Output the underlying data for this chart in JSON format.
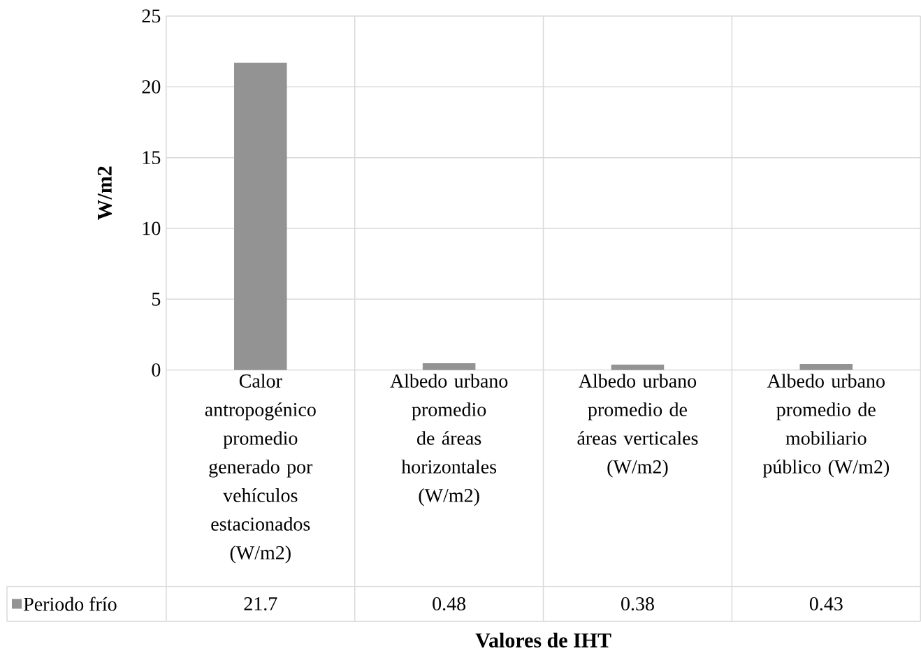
{
  "chart_data": {
    "type": "bar",
    "xlabel": "Valores de IHT",
    "ylabel": "W/m2",
    "categories": [
      "Calor antropogénico promedio generado por vehículos estacionados (W/m2)",
      "Albedo urbano promedio de áreas horizontales (W/m2)",
      "Albedo urbano promedio de áreas verticales (W/m2)",
      "Albedo urbano promedio de mobiliario público (W/m2)"
    ],
    "series": [
      {
        "name": "Periodo frío",
        "color": "#939393",
        "values": [
          21.7,
          0.48,
          0.38,
          0.43
        ]
      }
    ],
    "ylim": [
      0,
      25
    ],
    "yticks": [
      0,
      5,
      10,
      15,
      20,
      25
    ],
    "grid": true,
    "legend": "bottom",
    "data_labels": true
  }
}
